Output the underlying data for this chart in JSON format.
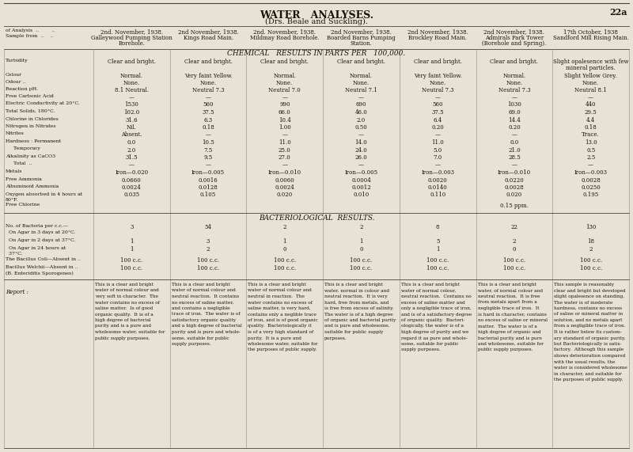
{
  "title": "WATER   ANALYSES.",
  "subtitle": "(Drs. Beale and Suckling).",
  "page_num": "22a",
  "bg_color": "#e8e2d5",
  "text_color": "#1a1208",
  "columns": [
    "2nd. November, 1938.\nGalleywood Pumping Station\nBorehole.",
    "2nd November, 1938.\nKings Road Main.",
    "2nd. November, 1938.\nMildmay Road Borehole.",
    "2nd November, 1938.\nBoarded Barns Pumping\nStation.",
    "2nd November, 1938.\nBrockley Road Main.",
    "2nd November, 1938.\nAdmirals Park Tower\n(Borehole and Spring).",
    "17th October, 1938\nSandford Mill Rising Main."
  ],
  "row_labels": [
    [
      "Turbidity",
      "..   .."
    ],
    [
      "Colour",
      "..   .."
    ],
    [
      "Odour ..",
      "..   .."
    ],
    [
      "Reaction pH.",
      "..   .."
    ],
    [
      "Free Carbonic Acid",
      ".."
    ],
    [
      "Electric Conductivity at 20°C.",
      ".."
    ],
    [
      "Total Solids, 180°C.",
      "..   .."
    ],
    [
      "Chlorine in Chlorides",
      ".."
    ],
    [
      "Nitrogen in Nitrates",
      ".."
    ],
    [
      "Nitrites",
      "..   .."
    ],
    [
      "Hardness : Permanent",
      ".."
    ],
    [
      "     Temporary",
      ".."
    ],
    [
      "Alkalinity as CaCO3",
      ".."
    ],
    [
      "     Total  ..",
      ".."
    ],
    [
      "Metals",
      "..   .."
    ],
    [
      "Free Ammonia",
      "..   .."
    ],
    [
      "Albuminoid Ammonia",
      ""
    ],
    [
      "Oxygen absorbed in 4 hours at\n80°F.",
      "..   .."
    ],
    [
      "Free Chlorine",
      ""
    ]
  ],
  "data": [
    [
      "Clear and bright.",
      "Clear and bright.",
      "Clear and bright.",
      "Clear and bright.",
      "Clear and bright.",
      "Clear and bright.",
      "Slight opalesence with few\nmineral particles."
    ],
    [
      "Normal.",
      "Very faint Yellow.",
      "Normal.",
      "Normal.",
      "Very faint Yellow.",
      "Normal.",
      "Slight Yellow Grey."
    ],
    [
      "None.",
      "None.",
      "None.",
      "None.",
      "None.",
      "None.",
      "None."
    ],
    [
      "8.1 Neutral.",
      "Neutral 7.3",
      "Neutral 7.0",
      "Neutral 7.1",
      "Neutral 7.3",
      "Neutral 7.3",
      "Neutral 8.1"
    ],
    [
      "—",
      "—",
      "—",
      "—",
      "—",
      "—",
      "—"
    ],
    [
      "1530",
      "560",
      "990",
      "690",
      "560",
      "1030",
      "440"
    ],
    [
      "102.0",
      "37.5",
      "66.0",
      "46.0",
      "37.5",
      "69.0",
      "29.5"
    ],
    [
      "31.6",
      "6.3",
      "10.4",
      "2.0",
      "6.4",
      "14.4",
      "4.4"
    ],
    [
      "Nil.",
      "0.18",
      "1.00",
      "0.50",
      "0.20",
      "0.20",
      "0.18"
    ],
    [
      "Absent.",
      "—",
      "—",
      "—",
      "—",
      "—",
      "Trace."
    ],
    [
      "0.0",
      "10.5",
      "11.0",
      "14.0",
      "11.0",
      "0.0",
      "13.0"
    ],
    [
      "2.0",
      "7.5",
      "25.0",
      "24.0",
      "5.0",
      "21.0",
      "0.5"
    ],
    [
      "31.5",
      "9.5",
      "27.0",
      "26.0",
      "7.0",
      "28.5",
      "2.5"
    ],
    [
      "—",
      "—",
      "—",
      "—",
      "—",
      "—",
      "—"
    ],
    [
      "Iron—0.020",
      "Iron—0.005",
      "Iron—0.010",
      "Iron—0.005",
      "Iron—0.003",
      "Iron—0.010",
      "Iron—0.003"
    ],
    [
      "0.0660",
      "0.0016",
      "0.0060",
      "0.0004",
      "0.0020",
      "0.0220",
      "0.0028"
    ],
    [
      "0.0024",
      "0.0128",
      "0.0024",
      "0.0012",
      "0.0140",
      "0.0028",
      "0.0250"
    ],
    [
      "0.035",
      "0.105",
      "0.020",
      "0.010",
      "0.110",
      "0.020",
      "0.195"
    ],
    [
      "",
      "",
      "",
      "",
      "",
      "0.15 ppm.",
      ""
    ]
  ],
  "bact_labels": [
    "No. of Bacteria per c.c.—\n  On Agar in 3 days at 20°C.",
    "  On Agar in 2 days at 37°C.",
    "  On Agar in 24 hours at\n  37°C.",
    "The Bacillus Coli—Absent in ..",
    "Bacillus Welchii—Absent in ..\n(B. Enteriditis Sporogenes)"
  ],
  "bact_data": [
    [
      "3",
      "54",
      "2",
      "2",
      "8",
      "22",
      "130"
    ],
    [
      "1",
      "3",
      "1",
      "1",
      "5",
      "2",
      "18"
    ],
    [
      "1",
      "2",
      "0",
      "0",
      "1",
      "0",
      "2"
    ],
    [
      "100 c.c.",
      "100 c.c.",
      "100 c.c.",
      "100 c.c.",
      "100 c.c.",
      "100 c.c.",
      "100 c.c."
    ],
    [
      "100 c.c.",
      "100 c.c.",
      "100 c.c.",
      "100 c.c.",
      "100 c.c.",
      "100 c.c.",
      "100 c.c."
    ]
  ],
  "reports": [
    "This is a clear and bright\nwater of normal colour and\nvery soft in character.  The\nwater contains no excess of\nsaline matter.  Is of good\norganic quality.  It is of a\nhigh degree of bacterial\npurity and is a pure and\nwholesome water, suitable for\npublic supply purposes.",
    "This is a clear and bright\nwater of normal colour and\nneutral reaction.  It contains\nno excess of saline matter,\nand contains a negligible\ntrace of iron.  The water is of\nsatisfactory organic quality\nand a high degree of bacterial\npurity and is pure and whole-\nsome, suitable for public\nsupply purposes.",
    "This is a clear and bright\nwater of normal colour and\nneutral in reaction.  The\nwater contains no excess of\nsaline matter, is very hard,\ncontains only a neglible trace\nof iron, and is of good organic\nquality.  Bacteriologically it\nis of a very high standard of\npurity.  It is a pure and\nwholesome water, suitable for\nthe purposes of public supply.",
    "This is a clear and bright\nwater, normal in colour and\nneutral reaction.  It is very\nhard, free from metals, and\nis free from excess of salinity.\nThe water is of a high degree\nof organic and bacterial purity\nand is pure and wholesome,\nsuitable for public supply\npurposes.",
    "This is a clear and bright\nwater of normal colour,\nneutral reaction.  Contains no\nexcess of saline matter and\nonly a negligible trace of iron,\nand is of a satisfactory degree\nof organic quality.  Bacteri-\nologically, the water is of a\nhigh degree of purity and we\nregard it as pure and whole-\nsome, suitable for public\nsupply purposes.",
    "This is a clear and bright\nwater, of normal colour and\nneutral reaction.  It is free\nfrom metals apart from a\nnegligible trace of iron.  It\nis hard in character, contains\nno excess of saline or mineral\nmatter.  The water is of a\nhigh degree of organic and\nbacterial purity and is pure\nand wholesome, suitable for\npublic supply purposes.",
    "This sample is reasonably\nclear and bright but developed\nslight opalesence on standing.\nThe water is of moderate\nhardness, contains no excess\nof saline or mineral matter in\nsolution, and no metals apart\nfrom a negligible trace of iron.\nIt is rather below its custom-\nary standard of organic purity,\nbut Bacteriologically is satis-\nfactory.  Although this sample\nshows deterioration compared\nwith the usual results, the\nwater is considered wholesome\nin character, and suitable for\nthe purposes of public supply."
  ]
}
